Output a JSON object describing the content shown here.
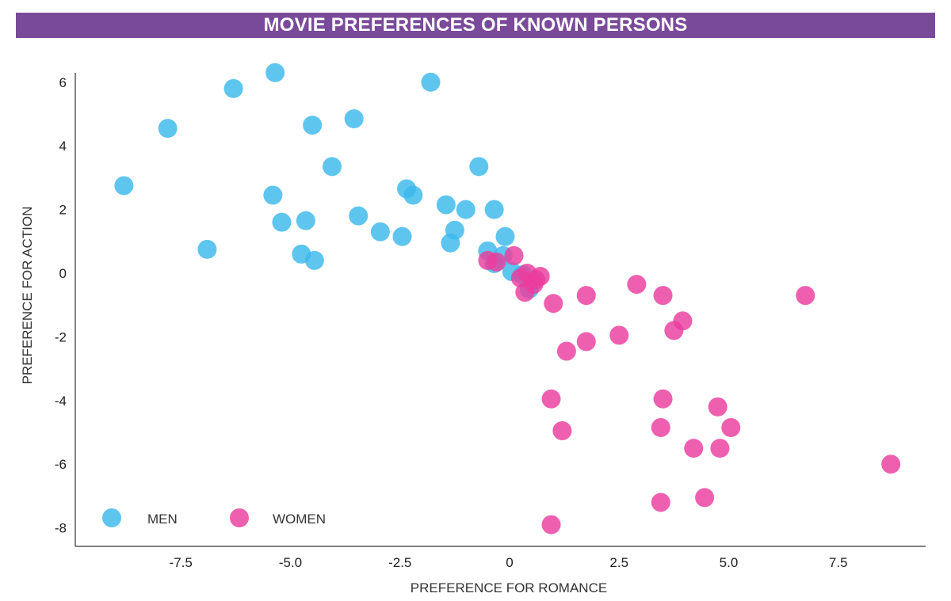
{
  "colors": {
    "title_bg": "#7a4a9a",
    "men": "#3ab8ec",
    "women": "#ec3c9e",
    "axis": "#333333"
  },
  "chart_data": {
    "type": "scatter",
    "title": "MOVIE PREFERENCES OF KNOWN PERSONS",
    "xlabel": "PREFERENCE FOR ROMANCE",
    "ylabel": "PREFERENCE FOR ACTION",
    "xlim": [
      -10,
      9.5
    ],
    "ylim": [
      -8.6,
      6.3
    ],
    "xticks": [
      -7.5,
      -5.0,
      -2.5,
      0,
      2.5,
      5.0,
      7.5
    ],
    "xtick_labels": [
      "-7.5",
      "-5.0",
      "-2.5",
      "0",
      "2.5",
      "5.0",
      "7.5"
    ],
    "yticks": [
      6,
      4,
      2,
      0,
      -2,
      -4,
      -6,
      -8
    ],
    "ytick_labels": [
      "6",
      "4",
      "2",
      "0",
      "-2",
      "-4",
      "-6",
      "-8"
    ],
    "grid": false,
    "legend_position": "bottom-left",
    "series": [
      {
        "name": "MEN",
        "x": [
          -5.35,
          -6.3,
          -1.8,
          -7.8,
          -4.5,
          -3.55,
          -4.05,
          -8.8,
          -0.7,
          -5.4,
          -2.35,
          -2.2,
          -1.45,
          -1.0,
          -0.35,
          -5.2,
          -4.65,
          -3.45,
          -2.95,
          -2.45,
          -1.25,
          -1.35,
          -6.9,
          -4.75,
          -4.45,
          -0.5,
          -0.1,
          -0.15,
          -0.35,
          0.05,
          0.3,
          0.45
        ],
        "y": [
          6.3,
          5.8,
          6.0,
          4.55,
          4.65,
          4.85,
          3.35,
          2.75,
          3.35,
          2.45,
          2.65,
          2.45,
          2.15,
          2.0,
          2.0,
          1.6,
          1.65,
          1.8,
          1.3,
          1.15,
          1.35,
          0.95,
          0.75,
          0.6,
          0.4,
          0.7,
          1.15,
          0.55,
          0.3,
          0.05,
          -0.05,
          -0.5
        ]
      },
      {
        "name": "WOMEN",
        "x": [
          -0.5,
          -0.3,
          0.1,
          0.25,
          0.4,
          0.55,
          0.7,
          0.35,
          0.6,
          1.0,
          1.75,
          2.9,
          3.5,
          6.75,
          3.95,
          3.75,
          2.5,
          1.75,
          1.3,
          0.95,
          3.5,
          4.75,
          1.2,
          3.45,
          5.05,
          4.2,
          4.8,
          8.7,
          4.45,
          3.45,
          0.95
        ],
        "y": [
          0.4,
          0.35,
          0.55,
          -0.15,
          0.0,
          -0.35,
          -0.1,
          -0.6,
          -0.2,
          -0.95,
          -0.7,
          -0.35,
          -0.7,
          -0.7,
          -1.5,
          -1.8,
          -1.95,
          -2.15,
          -2.45,
          -3.95,
          -3.95,
          -4.2,
          -4.95,
          -4.85,
          -4.85,
          -5.5,
          -5.5,
          -6.0,
          -7.05,
          -7.2,
          -7.9
        ]
      }
    ]
  }
}
